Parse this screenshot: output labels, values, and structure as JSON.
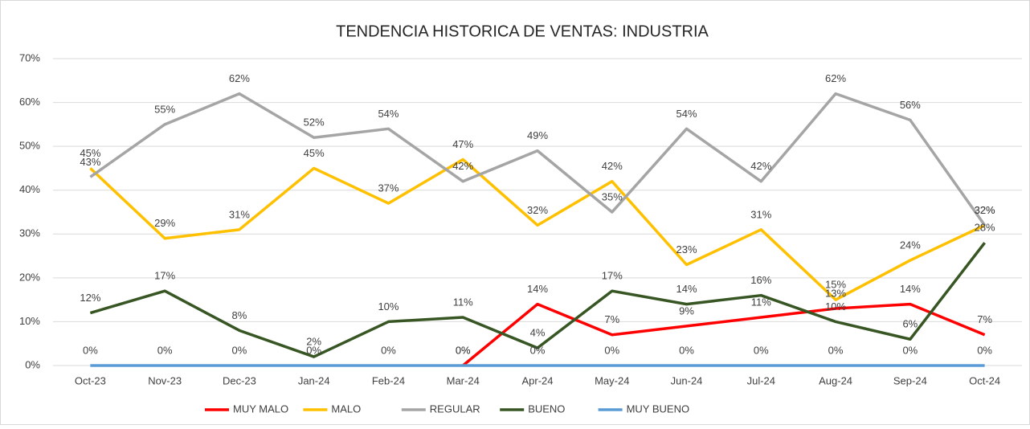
{
  "chart_data": {
    "type": "line",
    "title": "TENDENCIA HISTORICA DE VENTAS: INDUSTRIA",
    "categories": [
      "Oct-23",
      "Nov-23",
      "Dec-23",
      "Jan-24",
      "Feb-24",
      "Mar-24",
      "Apr-24",
      "May-24",
      "Jun-24",
      "Jul-24",
      "Aug-24",
      "Sep-24",
      "Oct-24"
    ],
    "series": [
      {
        "name": "MUY MALO",
        "color": "#ff0000",
        "values": [
          null,
          null,
          null,
          null,
          null,
          0,
          14,
          7,
          9,
          11,
          13,
          14,
          7
        ],
        "value_labels": [
          null,
          null,
          null,
          null,
          null,
          "0%",
          "14%",
          "7%",
          "9%",
          "11%",
          "13%",
          "14%",
          "7%"
        ]
      },
      {
        "name": "MALO",
        "color": "#ffc000",
        "values": [
          45,
          29,
          31,
          45,
          37,
          47,
          32,
          42,
          23,
          31,
          15,
          24,
          32
        ],
        "value_labels": [
          "45%",
          "29%",
          "31%",
          "45%",
          "37%",
          "47%",
          "32%",
          "42%",
          "23%",
          "31%",
          "15%",
          "24%",
          "32%"
        ]
      },
      {
        "name": "REGULAR",
        "color": "#a5a5a5",
        "values": [
          43,
          55,
          62,
          52,
          54,
          42,
          49,
          35,
          54,
          42,
          62,
          56,
          32
        ],
        "value_labels": [
          "43%",
          "55%",
          "62%",
          "52%",
          "54%",
          "42%",
          "49%",
          "35%",
          "54%",
          "42%",
          "62%",
          "56%",
          "32%"
        ]
      },
      {
        "name": "BUENO",
        "color": "#375623",
        "values": [
          12,
          17,
          8,
          2,
          10,
          11,
          4,
          17,
          14,
          16,
          10,
          6,
          28
        ],
        "value_labels": [
          "12%",
          "17%",
          "8%",
          "2%",
          "10%",
          "11%",
          "4%",
          "17%",
          "14%",
          "16%",
          "10%",
          "6%",
          "28%"
        ]
      },
      {
        "name": "MUY BUENO",
        "color": "#5b9bd5",
        "values": [
          0,
          0,
          0,
          0,
          0,
          0,
          0,
          0,
          0,
          0,
          0,
          0,
          0
        ],
        "value_labels": [
          "0%",
          "0%",
          "0%",
          "0%",
          "0%",
          "0%",
          "0%",
          "0%",
          "0%",
          "0%",
          "0%",
          "0%",
          "0%"
        ]
      }
    ],
    "ylim": [
      0,
      70
    ],
    "yticks": [
      {
        "value": 0,
        "label": "0%"
      },
      {
        "value": 10,
        "label": "10%"
      },
      {
        "value": 20,
        "label": "20%"
      },
      {
        "value": 30,
        "label": "30%"
      },
      {
        "value": 40,
        "label": "40%"
      },
      {
        "value": 50,
        "label": "50%"
      },
      {
        "value": 60,
        "label": "60%"
      },
      {
        "value": 70,
        "label": "70%"
      }
    ],
    "grid": true,
    "legend": "bottom"
  }
}
